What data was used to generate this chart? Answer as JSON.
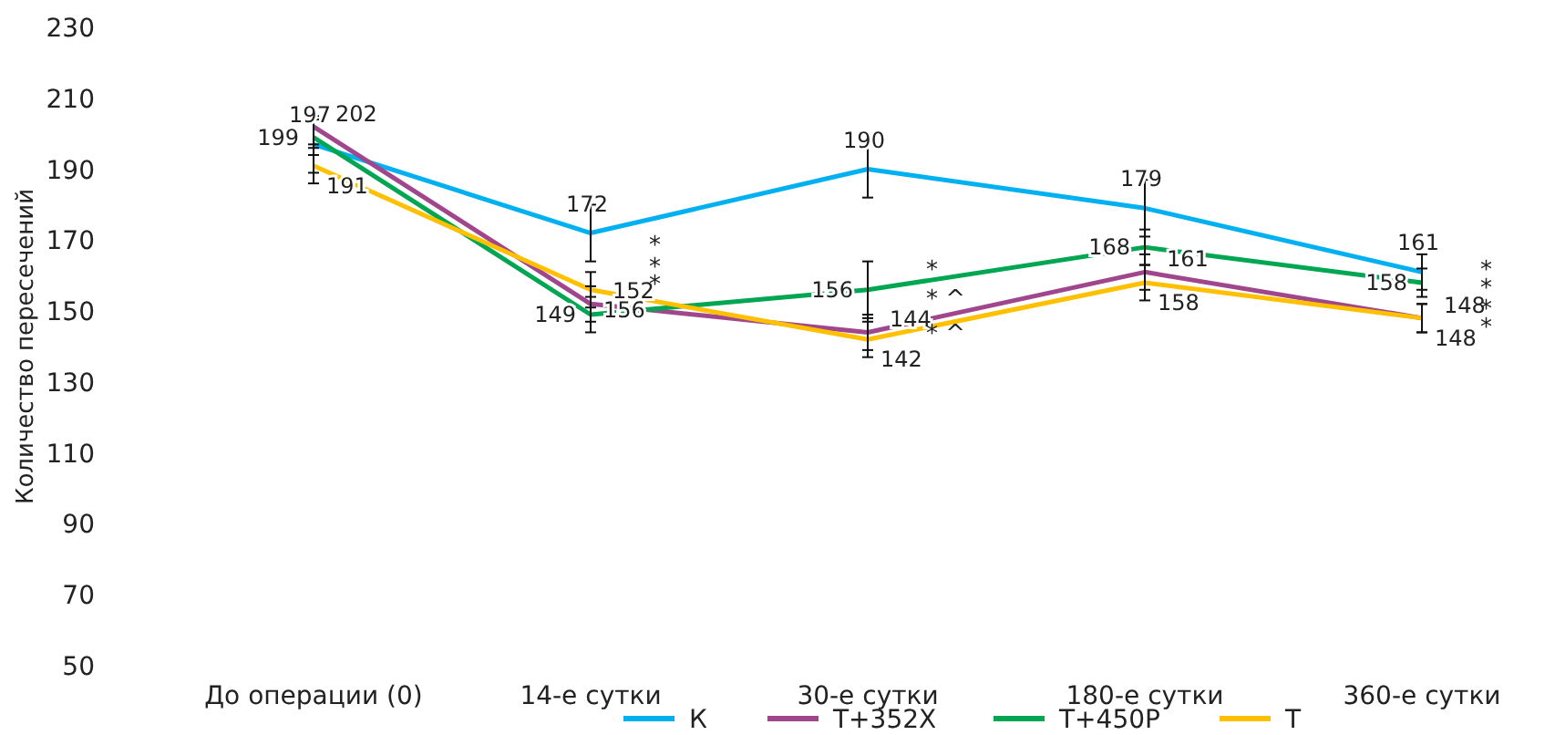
{
  "chart_data": {
    "type": "line",
    "ylabel": "Количество пересечений",
    "categories": [
      "До операции (0)",
      "14-е сутки",
      "30-е сутки",
      "180-е сутки",
      "360-е сутки"
    ],
    "ylim": [
      50,
      230
    ],
    "yticks": [
      50,
      70,
      90,
      110,
      130,
      150,
      170,
      190,
      210,
      230
    ],
    "grid": false,
    "legend": "bottom",
    "marker": "none",
    "line_style": "solid",
    "data_labels": true,
    "series": [
      {
        "name": "К",
        "color": "#00b0f0",
        "values": [
          197,
          172,
          190,
          179,
          161
        ],
        "errors": [
          8,
          8,
          8,
          8,
          5
        ]
      },
      {
        "name": "Т+352Х",
        "color": "#a0468c",
        "values": [
          202,
          152,
          144,
          161,
          148
        ],
        "errors": [
          5,
          5,
          5,
          5,
          4
        ]
      },
      {
        "name": "Т+450Р",
        "color": "#00a651",
        "values": [
          199,
          149,
          156,
          168,
          158
        ],
        "errors": [
          5,
          5,
          8,
          5,
          4
        ]
      },
      {
        "name": "Т",
        "color": "#ffc000",
        "values": [
          191,
          156,
          142,
          158,
          148
        ],
        "errors": [
          5,
          5,
          5,
          5,
          4
        ]
      }
    ],
    "annotations": [
      {
        "text": "*",
        "x": "14-е сутки",
        "y": 169
      },
      {
        "text": "*",
        "x": "14-е сутки",
        "y": 163
      },
      {
        "text": "*",
        "x": "14-е сутки",
        "y": 158
      },
      {
        "text": "*",
        "x": "30-е сутки",
        "y": 162
      },
      {
        "text": "* ^",
        "x": "30-е сутки",
        "y": 154
      },
      {
        "text": "* ^",
        "x": "30-е сутки",
        "y": 144
      },
      {
        "text": "*",
        "x": "360-е сутки",
        "y": 162
      },
      {
        "text": "*",
        "x": "360-е сутки",
        "y": 157
      },
      {
        "text": "*",
        "x": "360-е сутки",
        "y": 151
      },
      {
        "text": "*",
        "x": "360-е сутки",
        "y": 146
      }
    ]
  }
}
